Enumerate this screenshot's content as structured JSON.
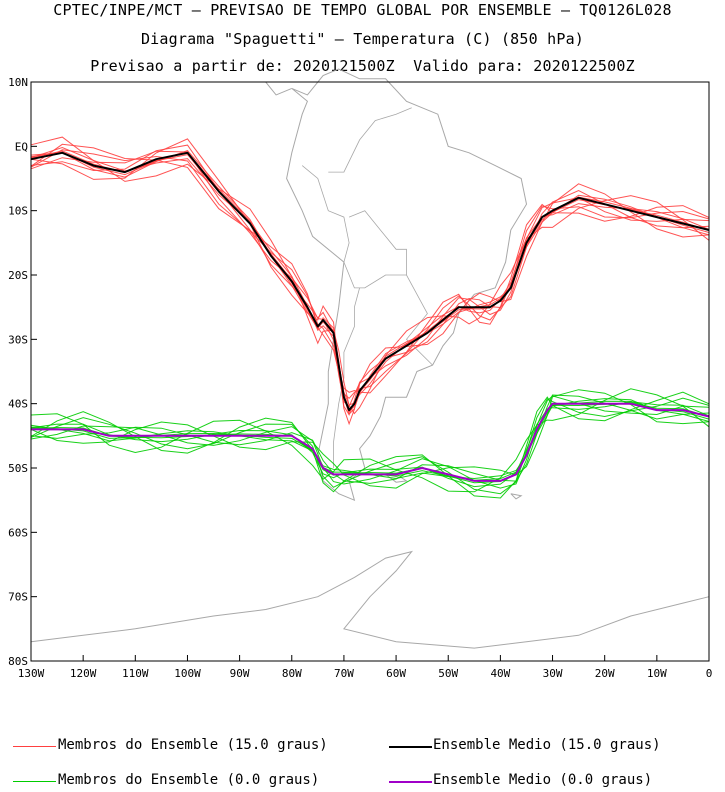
{
  "chart_data": {
    "type": "line",
    "title_lines": [
      "CPTEC/INPE/MCT – PREVISAO DE TEMPO GLOBAL POR ENSEMBLE – TQ0126L028",
      "Diagrama \"Spaguetti\" – Temperatura (C) (850 hPa)",
      "Previsao a partir de: 2020121500Z  Valido para: 2020122500Z"
    ],
    "x_axis": {
      "ticks": [
        "130W",
        "120W",
        "110W",
        "100W",
        "90W",
        "80W",
        "70W",
        "60W",
        "50W",
        "40W",
        "30W",
        "20W",
        "10W",
        "0"
      ],
      "range": [
        -130,
        0
      ]
    },
    "y_axis": {
      "ticks": [
        "10N",
        "EQ",
        "10S",
        "20S",
        "30S",
        "40S",
        "50S",
        "60S",
        "70S",
        "80S"
      ],
      "range": [
        -80,
        10
      ]
    },
    "grid": false,
    "legend_position": "bottom",
    "series": [
      {
        "name": "Membros do Ensemble (15.0 graus)",
        "color": "#ff4040",
        "x": [
          -130,
          -124,
          -118,
          -112,
          -106,
          -100,
          -94,
          -88,
          -84,
          -80,
          -77,
          -75,
          -74,
          -72,
          -71,
          -70,
          -69,
          -68,
          -67,
          -65,
          -62,
          -58,
          -54,
          -51,
          -48,
          -46,
          -44,
          -42,
          -40,
          -38,
          -35,
          -32,
          -30,
          -25,
          -20,
          -15,
          -10,
          -5,
          0
        ],
        "y": [
          -2,
          -1,
          -3,
          -4,
          -2,
          -1,
          -7,
          -12,
          -17,
          -21,
          -25,
          -28,
          -27,
          -29,
          -34,
          -39,
          -41,
          -40,
          -38,
          -36,
          -33,
          -31,
          -29,
          -27,
          -25,
          -25,
          -25,
          -25,
          -24,
          -22,
          -15,
          -11,
          -10,
          -8,
          -9,
          -10,
          -11,
          -12,
          -13
        ]
      },
      {
        "name": "Ensemble Medio (15.0 graus)",
        "color": "#000000",
        "x": [
          -130,
          -124,
          -118,
          -112,
          -106,
          -100,
          -94,
          -88,
          -84,
          -80,
          -77,
          -75,
          -74,
          -72,
          -71,
          -70,
          -69,
          -68,
          -67,
          -65,
          -62,
          -58,
          -54,
          -51,
          -48,
          -46,
          -44,
          -42,
          -40,
          -38,
          -35,
          -32,
          -30,
          -25,
          -20,
          -15,
          -10,
          -5,
          0
        ],
        "y": [
          -2,
          -1,
          -3,
          -4,
          -2,
          -1,
          -7,
          -12,
          -17,
          -21,
          -25,
          -28,
          -27,
          -29,
          -34,
          -39,
          -41,
          -40,
          -38,
          -36,
          -33,
          -31,
          -29,
          -27,
          -25,
          -25,
          -25,
          -25,
          -24,
          -22,
          -15,
          -11,
          -10,
          -8,
          -9,
          -10,
          -11,
          -12,
          -13
        ]
      },
      {
        "name": "Membros do Ensemble (0.0 graus)",
        "color": "#00cc00",
        "x": [
          -130,
          -125,
          -120,
          -115,
          -110,
          -105,
          -100,
          -95,
          -90,
          -85,
          -80,
          -76,
          -74,
          -72,
          -70,
          -65,
          -60,
          -55,
          -50,
          -45,
          -40,
          -37,
          -35,
          -33,
          -31,
          -30,
          -25,
          -20,
          -15,
          -10,
          -5,
          0
        ],
        "y": [
          -44,
          -44,
          -44,
          -45,
          -45,
          -45,
          -45,
          -45,
          -45,
          -45,
          -45,
          -47,
          -50,
          -51,
          -51,
          -51,
          -51,
          -50,
          -51,
          -52,
          -52,
          -51,
          -48,
          -44,
          -41,
          -40,
          -40,
          -40,
          -40,
          -41,
          -41,
          -42
        ]
      },
      {
        "name": "Ensemble Medio (0.0 graus)",
        "color": "#a000c8",
        "x": [
          -130,
          -125,
          -120,
          -115,
          -110,
          -105,
          -100,
          -95,
          -90,
          -85,
          -80,
          -76,
          -74,
          -72,
          -70,
          -65,
          -60,
          -55,
          -50,
          -45,
          -40,
          -37,
          -35,
          -33,
          -31,
          -30,
          -25,
          -20,
          -15,
          -10,
          -5,
          0
        ],
        "y": [
          -44,
          -44,
          -44,
          -45,
          -45,
          -45,
          -45,
          -45,
          -45,
          -45,
          -45,
          -47,
          -50,
          -51,
          -51,
          -51,
          -51,
          -50,
          -51,
          -52,
          -52,
          -51,
          -48,
          -44,
          -41,
          -40,
          -40,
          -40,
          -40,
          -41,
          -41,
          -42
        ]
      }
    ]
  },
  "legend": [
    {
      "label": "Membros do Ensemble (15.0 graus)",
      "color": "#ff4040"
    },
    {
      "label": "Ensemble Medio (15.0 graus)",
      "color": "#000000"
    },
    {
      "label": "Membros do Ensemble (0.0 graus)",
      "color": "#00cc00"
    },
    {
      "label": "Ensemble Medio (0.0 graus)",
      "color": "#a000c8"
    }
  ],
  "colors": {
    "coastline": "#a8a8a8",
    "axis": "#000000"
  }
}
